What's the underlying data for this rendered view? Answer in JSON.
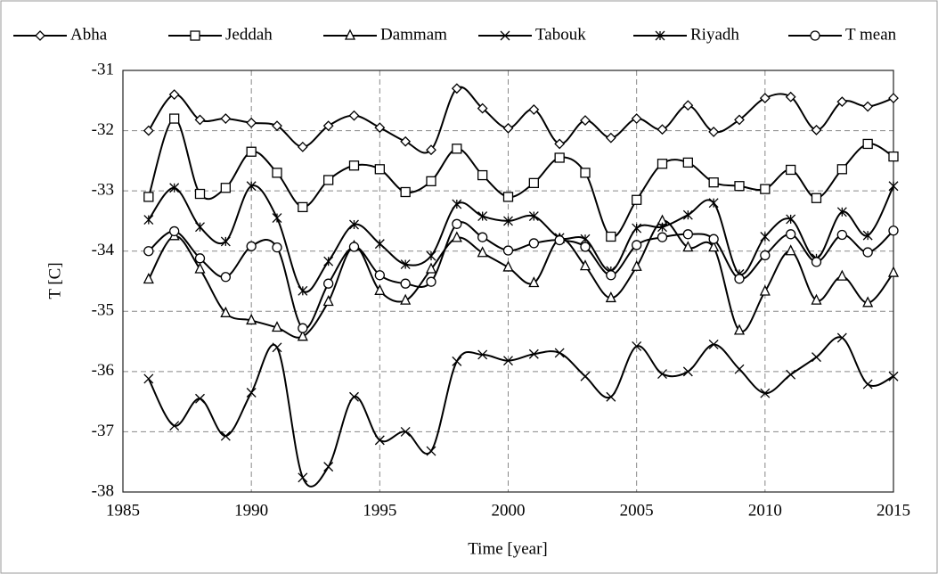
{
  "chart_data": {
    "type": "line",
    "x_label": "Time [year]",
    "y_label": "T [C]",
    "x": [
      1986,
      1987,
      1988,
      1989,
      1990,
      1991,
      1992,
      1993,
      1994,
      1995,
      1996,
      1997,
      1998,
      1999,
      2000,
      2001,
      2002,
      2003,
      2004,
      2005,
      2006,
      2007,
      2008,
      2009,
      2010,
      2011,
      2012,
      2013,
      2014,
      2015
    ],
    "xlim": [
      1985,
      2015
    ],
    "xticks": [
      1985,
      1990,
      1995,
      2000,
      2005,
      2010,
      2015
    ],
    "ylim": [
      -38,
      -31
    ],
    "yticks": [
      -38,
      -37,
      -36,
      -35,
      -34,
      -33,
      -32,
      -31
    ],
    "grid": true,
    "legend": "top",
    "series": [
      {
        "name": "Abha",
        "color": "#000000",
        "marker": "diamond",
        "values": [
          -32,
          -31.4,
          -31.82,
          -31.8,
          -31.87,
          -31.92,
          -32.27,
          -31.92,
          -31.75,
          -31.95,
          -32.18,
          -32.32,
          -31.3,
          -31.63,
          -31.96,
          -31.65,
          -32.22,
          -31.83,
          -32.12,
          -31.8,
          -31.98,
          -31.58,
          -32.02,
          -31.82,
          -31.46,
          -31.44,
          -31.99,
          -31.52,
          -31.6,
          -31.46
        ]
      },
      {
        "name": "Jeddah",
        "color": "#000000",
        "marker": "square",
        "values": [
          -33.1,
          -31.8,
          -33.05,
          -32.95,
          -32.35,
          -32.7,
          -33.27,
          -32.82,
          -32.58,
          -32.64,
          -33.02,
          -32.84,
          -32.3,
          -32.74,
          -33.1,
          -32.87,
          -32.45,
          -32.7,
          -33.76,
          -33.15,
          -32.55,
          -32.53,
          -32.86,
          -32.92,
          -32.97,
          -32.65,
          -33.12,
          -32.64,
          -32.22,
          -32.43
        ]
      },
      {
        "name": "Dammam",
        "color": "#000000",
        "marker": "triangle",
        "values": [
          -34.47,
          -33.75,
          -34.3,
          -35.03,
          -35.15,
          -35.27,
          -35.42,
          -34.84,
          -33.92,
          -34.66,
          -34.82,
          -34.3,
          -33.78,
          -34.03,
          -34.27,
          -34.53,
          -33.8,
          -34.25,
          -34.78,
          -34.26,
          -33.5,
          -33.94,
          -33.94,
          -35.32,
          -34.67,
          -34.0,
          -34.82,
          -34.42,
          -34.86,
          -34.36
        ]
      },
      {
        "name": "Tabouk",
        "color": "#000000",
        "marker": "x",
        "values": [
          -36.12,
          -36.9,
          -36.45,
          -37.07,
          -36.35,
          -35.6,
          -37.76,
          -37.58,
          -36.42,
          -37.14,
          -37.0,
          -37.32,
          -35.83,
          -35.72,
          -35.82,
          -35.71,
          -35.69,
          -36.08,
          -36.42,
          -35.58,
          -36.04,
          -36.0,
          -35.55,
          -35.96,
          -36.36,
          -36.05,
          -35.76,
          -35.44,
          -36.21,
          -36.08
        ]
      },
      {
        "name": "Riyadh",
        "color": "#000000",
        "marker": "asterisk",
        "values": [
          -33.48,
          -32.95,
          -33.6,
          -33.84,
          -32.92,
          -33.45,
          -34.66,
          -34.17,
          -33.56,
          -33.88,
          -34.22,
          -34.08,
          -33.22,
          -33.42,
          -33.5,
          -33.42,
          -33.78,
          -33.8,
          -34.33,
          -33.62,
          -33.6,
          -33.4,
          -33.2,
          -34.38,
          -33.76,
          -33.47,
          -34.12,
          -33.35,
          -33.74,
          -32.92
        ]
      },
      {
        "name": "T mean",
        "color": "#000000",
        "marker": "circle",
        "values": [
          -34.0,
          -33.67,
          -34.12,
          -34.43,
          -33.92,
          -33.94,
          -35.28,
          -34.54,
          -33.93,
          -34.4,
          -34.54,
          -34.51,
          -33.55,
          -33.77,
          -33.99,
          -33.87,
          -33.82,
          -33.93,
          -34.4,
          -33.9,
          -33.77,
          -33.72,
          -33.8,
          -34.46,
          -34.07,
          -33.72,
          -34.18,
          -33.73,
          -34.02,
          -33.66
        ]
      }
    ]
  }
}
